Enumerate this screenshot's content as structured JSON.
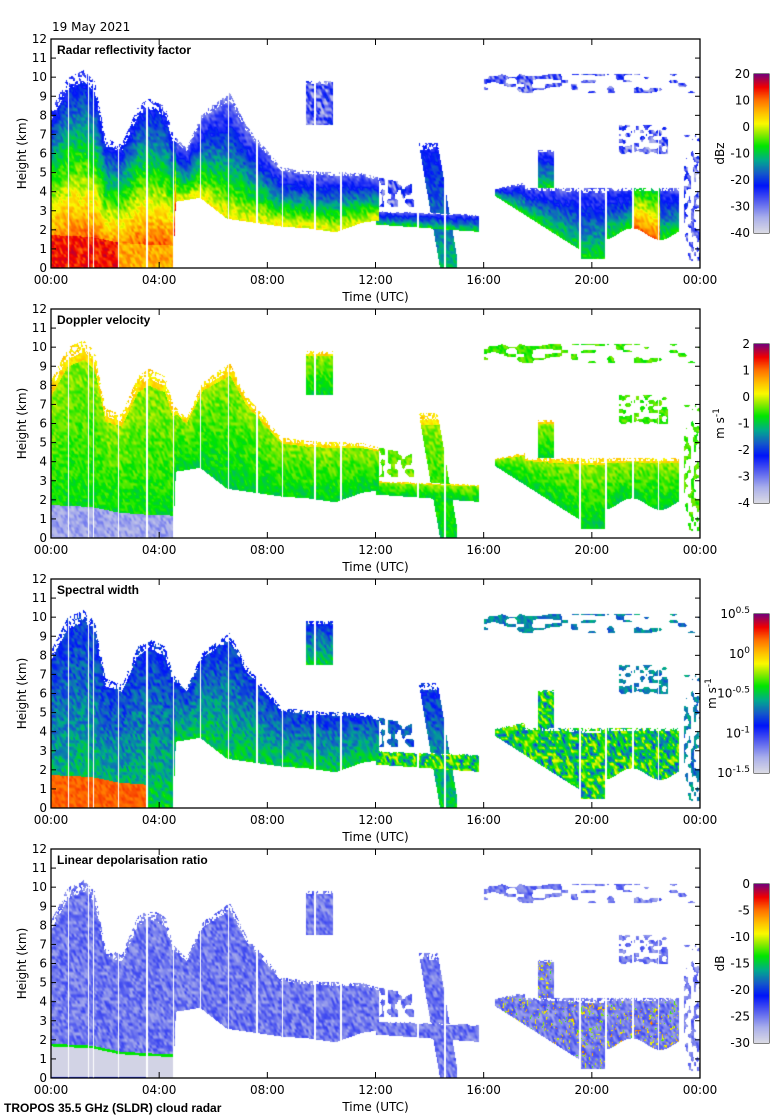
{
  "header": {
    "date": "19 May 2021"
  },
  "footer": {
    "instrument": "TROPOS 35.5 GHz (SLDR) cloud radar"
  },
  "chart_data": [
    {
      "type": "heatmap",
      "title": "Radar reflectivity factor",
      "xlabel": "Time (UTC)",
      "ylabel": "Height (km)",
      "xlim": [
        0,
        24
      ],
      "ylim": [
        0,
        12
      ],
      "xticks": [
        "00:00",
        "04:00",
        "08:00",
        "12:00",
        "16:00",
        "20:00",
        "00:00"
      ],
      "yticks": [
        "0",
        "1",
        "2",
        "3",
        "4",
        "5",
        "6",
        "7",
        "8",
        "9",
        "10",
        "11",
        "12"
      ],
      "colorbar": {
        "label": "dBz",
        "range": [
          -40,
          20
        ],
        "ticks": [
          "20",
          "10",
          "0",
          "-10",
          "-20",
          "-30",
          "-40"
        ]
      },
      "features": "deep precipitating cloud 00:00-04:30 up to ~10.5 km with strong echoes (>10 dBz) below 2 km; descending mid-level layer 04:30-12:00 from ~6 km to ~2 km; weak cloud layers 12:00-23:00 near 2-4.5 km; cirrus near 9-10 km"
    },
    {
      "type": "heatmap",
      "title": "Doppler velocity",
      "xlabel": "Time (UTC)",
      "ylabel": "Height (km)",
      "xlim": [
        0,
        24
      ],
      "ylim": [
        0,
        12
      ],
      "xticks": [
        "00:00",
        "04:00",
        "08:00",
        "12:00",
        "16:00",
        "20:00",
        "00:00"
      ],
      "yticks": [
        "0",
        "1",
        "2",
        "3",
        "4",
        "5",
        "6",
        "7",
        "8",
        "9",
        "10",
        "11",
        "12"
      ],
      "colorbar": {
        "label": "m s-1",
        "label_main": "m s",
        "label_sup": "-1",
        "range": [
          -4,
          2
        ],
        "ticks": [
          "2",
          "1",
          "0",
          "-1",
          "-2",
          "-3",
          "-4"
        ]
      },
      "features": "ice falling at -1 to -1.5 m/s above melting layer; rain below ~1.7 km at -4 m/s or faster; near-zero velocities at cloud tops"
    },
    {
      "type": "heatmap",
      "title": "Spectral width",
      "xlabel": "Time (UTC)",
      "ylabel": "Height (km)",
      "xlim": [
        0,
        24
      ],
      "ylim": [
        0,
        12
      ],
      "xticks": [
        "00:00",
        "04:00",
        "08:00",
        "12:00",
        "16:00",
        "20:00",
        "00:00"
      ],
      "yticks": [
        "0",
        "1",
        "2",
        "3",
        "4",
        "5",
        "6",
        "7",
        "8",
        "9",
        "10",
        "11",
        "12"
      ],
      "colorbar": {
        "label": "m s-1",
        "label_main": "m s",
        "label_sup": "-1",
        "scale": "log10",
        "range": [
          -1.5,
          0.5
        ],
        "ticks": [
          {
            "base": "10",
            "exp": "0.5"
          },
          {
            "base": "10",
            "exp": "0"
          },
          {
            "base": "10",
            "exp": "-0.5"
          },
          {
            "base": "10",
            "exp": "-1"
          },
          {
            "base": "10",
            "exp": "-1.5"
          }
        ]
      },
      "features": "wide spectra (~10^0) in rain below 1.6 km before 03:30; narrow (~10^-1) in upper ice cloud"
    },
    {
      "type": "heatmap",
      "title": "Linear depolarisation ratio",
      "xlabel": "Time (UTC)",
      "ylabel": "Height (km)",
      "xlim": [
        0,
        24
      ],
      "ylim": [
        0,
        12
      ],
      "xticks": [
        "00:00",
        "04:00",
        "08:00",
        "12:00",
        "16:00",
        "20:00",
        "00:00"
      ],
      "yticks": [
        "0",
        "1",
        "2",
        "3",
        "4",
        "5",
        "6",
        "7",
        "8",
        "9",
        "10",
        "11",
        "12"
      ],
      "colorbar": {
        "label": "dB",
        "range": [
          -30,
          0
        ],
        "ticks": [
          "0",
          "-5",
          "-10",
          "-15",
          "-20",
          "-25",
          "-30"
        ]
      },
      "features": "low LDR (~-25 dB) in ice; melting layer signature ~-15 dB at 1.7 km descending to 1.2 km by 04:00"
    }
  ]
}
